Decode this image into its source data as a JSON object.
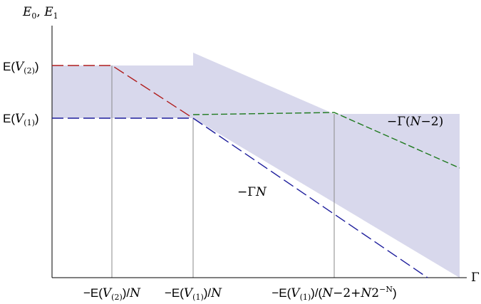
{
  "axes": {
    "y_label_main": "E",
    "y_label_sub0": "0",
    "y_label_sep": ", ",
    "y_label_sub1": "1",
    "x_label": "Γ"
  },
  "y_ticks": [
    {
      "pre": "E(",
      "italic": "V",
      "sub": "(2)",
      "post": ")"
    },
    {
      "pre": "E(",
      "italic": "V",
      "sub": "(1)",
      "post": ")"
    }
  ],
  "x_ticks": [
    {
      "pre": "−E(",
      "italic": "V",
      "sub": "(2)",
      "post": ")/",
      "tail": "N"
    },
    {
      "pre": "−E(",
      "italic": "V",
      "sub": "(1)",
      "post": ")/",
      "tail": "N"
    },
    {
      "pre": "−E(",
      "italic": "V",
      "sub": "(1)",
      "post": ")/(",
      "tail_a": "N",
      "mid": "−2+",
      "tail_b": "N",
      "mid2": "2",
      "sup": "−N",
      "close": ")"
    }
  ],
  "annotations": {
    "gamma_n_prefix": "−Γ",
    "gamma_n_var": "N",
    "gamma_n2_prefix": "−Γ(",
    "gamma_n2_var": "N",
    "gamma_n2_suffix": "−2)"
  },
  "colors": {
    "band": "#d8d8ec",
    "red": "#b01e1e",
    "blue": "#1d1d9c",
    "green": "#1f7a1f",
    "guide": "#8a8a8a"
  }
}
